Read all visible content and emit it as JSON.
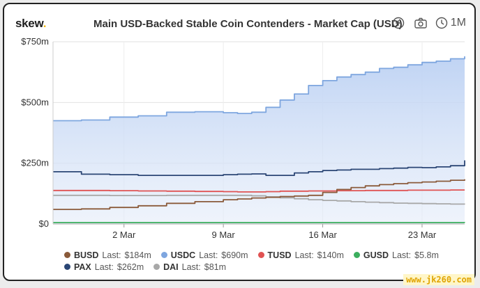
{
  "header": {
    "brand": "skew",
    "brand_dot": ".",
    "title": "Main USD-Backed Stable Coin Contenders - Market Cap (USD)",
    "range_label": "1M"
  },
  "watermark": "www.jk260.com",
  "colors": {
    "accent": "#f2b705"
  },
  "chart_data": {
    "type": "area",
    "title": "Main USD-Backed Stable Coin Contenders - Market Cap (USD)",
    "xlabel": "",
    "ylabel": "",
    "ylim": [
      0,
      750
    ],
    "y_ticks": [
      0,
      250,
      500,
      750
    ],
    "y_tick_labels": [
      "$0",
      "$250m",
      "$500m",
      "$750m"
    ],
    "x_range": [
      0,
      29
    ],
    "x_ticks": [
      5,
      12,
      19,
      26
    ],
    "x_tick_labels": [
      "2 Mar",
      "9 Mar",
      "16 Mar",
      "23 Mar"
    ],
    "grid": true,
    "legend_position": "bottom",
    "x": [
      0,
      2,
      4,
      6,
      8,
      10,
      12,
      13,
      14,
      15,
      16,
      17,
      18,
      19,
      20,
      21,
      22,
      23,
      24,
      25,
      26,
      27,
      28,
      29
    ],
    "series": [
      {
        "name": "USDC",
        "color": "#7ea6df",
        "legend_prefix": "Last:",
        "last_label": "$690m",
        "filled": true,
        "values": [
          425,
          428,
          440,
          445,
          460,
          462,
          458,
          455,
          460,
          480,
          510,
          535,
          570,
          590,
          605,
          615,
          625,
          640,
          645,
          655,
          665,
          670,
          680,
          690
        ]
      },
      {
        "name": "PAX",
        "color": "#2b4675",
        "legend_prefix": "Last:",
        "last_label": "$262m",
        "filled": false,
        "values": [
          215,
          205,
          203,
          200,
          200,
          200,
          203,
          205,
          206,
          200,
          200,
          210,
          215,
          220,
          222,
          225,
          225,
          228,
          230,
          233,
          232,
          235,
          240,
          262
        ]
      },
      {
        "name": "TUSD",
        "color": "#e05252",
        "legend_prefix": "Last:",
        "last_label": "$140m",
        "filled": false,
        "values": [
          138,
          138,
          137,
          136,
          135,
          134,
          133,
          132,
          132,
          133,
          135,
          135,
          136,
          136,
          137,
          137,
          138,
          138,
          138,
          139,
          139,
          139,
          140,
          140
        ]
      },
      {
        "name": "DAI",
        "color": "#a8a8a8",
        "legend_prefix": "Last:",
        "last_label": "$81m",
        "filled": false,
        "values": [
          118,
          118,
          117,
          117,
          118,
          118,
          118,
          118,
          116,
          112,
          108,
          104,
          100,
          97,
          95,
          92,
          90,
          88,
          86,
          85,
          84,
          83,
          82,
          81
        ]
      },
      {
        "name": "BUSD",
        "color": "#8a5a3a",
        "legend_prefix": "Last:",
        "last_label": "$184m",
        "filled": false,
        "values": [
          60,
          62,
          68,
          75,
          85,
          92,
          100,
          103,
          107,
          110,
          113,
          115,
          118,
          130,
          142,
          150,
          157,
          162,
          166,
          170,
          173,
          176,
          180,
          184
        ]
      },
      {
        "name": "GUSD",
        "color": "#3cae5e",
        "legend_prefix": "Last:",
        "last_label": "$5.8m",
        "filled": false,
        "values": [
          6,
          6,
          6,
          6,
          6,
          6,
          6,
          6,
          6,
          6,
          6,
          6,
          6,
          6,
          6,
          6,
          6,
          6,
          6,
          6,
          6,
          6,
          6,
          5.8
        ]
      }
    ],
    "legend_rows": [
      [
        "BUSD",
        "USDC",
        "TUSD",
        "GUSD"
      ],
      [
        "PAX",
        "DAI"
      ]
    ]
  }
}
